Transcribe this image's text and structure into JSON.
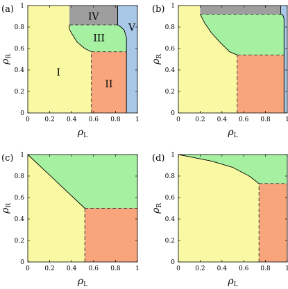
{
  "colors": {
    "I": "#f9f9a3",
    "II": "#f8a57c",
    "III": "#a6f0a2",
    "IV": "#9e9e9e",
    "V": "#a9c7e6",
    "boundary": "#000000",
    "dashed": "#333333"
  },
  "chart_data": [
    {
      "type": "area",
      "panel_label": "(a)",
      "xlabel_symbol": "ρ",
      "xlabel_sub": "L",
      "ylabel_symbol": "ρ",
      "ylabel_sub": "R",
      "xlim": [
        0,
        1
      ],
      "ylim": [
        0,
        1
      ],
      "xticks": [
        "0",
        "0.2",
        "0.4",
        "0.6",
        "0.8",
        "1"
      ],
      "yticks": [
        "0",
        "0.2",
        "0.4",
        "0.6",
        "0.8",
        "1"
      ],
      "regions": [
        {
          "id": "I",
          "label": "I",
          "label_at": [
            0.28,
            0.38
          ],
          "points": [
            [
              0,
              0
            ],
            [
              0.58,
              0
            ],
            [
              0.58,
              0.57
            ],
            [
              0.52,
              0.6
            ],
            [
              0.45,
              0.66
            ],
            [
              0.4,
              0.74
            ],
            [
              0.38,
              0.82
            ],
            [
              0.38,
              1
            ],
            [
              0,
              1
            ]
          ]
        },
        {
          "id": "II",
          "label": "II",
          "label_at": [
            0.74,
            0.27
          ],
          "points": [
            [
              0.58,
              0
            ],
            [
              0.9,
              0
            ],
            [
              0.9,
              0.57
            ],
            [
              0.58,
              0.57
            ]
          ]
        },
        {
          "id": "III",
          "label": "III",
          "label_at": [
            0.65,
            0.7
          ],
          "points": [
            [
              0.38,
              0.82
            ],
            [
              0.4,
              0.74
            ],
            [
              0.45,
              0.66
            ],
            [
              0.52,
              0.6
            ],
            [
              0.58,
              0.57
            ],
            [
              0.9,
              0.57
            ],
            [
              0.9,
              0.7
            ],
            [
              0.88,
              0.77
            ],
            [
              0.85,
              0.8
            ],
            [
              0.82,
              0.82
            ]
          ]
        },
        {
          "id": "IV",
          "label": "IV",
          "label_at": [
            0.6,
            0.9
          ],
          "points": [
            [
              0.38,
              0.82
            ],
            [
              0.82,
              0.82
            ],
            [
              0.82,
              1
            ],
            [
              0.38,
              1
            ]
          ]
        },
        {
          "id": "V",
          "label": "V",
          "label_at": [
            0.95,
            0.8
          ],
          "points": [
            [
              0.82,
              0.82
            ],
            [
              0.85,
              0.8
            ],
            [
              0.88,
              0.77
            ],
            [
              0.9,
              0.7
            ],
            [
              0.9,
              0
            ],
            [
              1,
              0
            ],
            [
              1,
              1
            ],
            [
              0.82,
              1
            ]
          ]
        }
      ],
      "solid_lines": [
        [
          [
            0.38,
            0.82
          ],
          [
            0.38,
            0.78
          ],
          [
            0.4,
            0.74
          ],
          [
            0.45,
            0.66
          ],
          [
            0.52,
            0.6
          ],
          [
            0.58,
            0.57
          ]
        ],
        [
          [
            0.82,
            1
          ],
          [
            0.82,
            0.82
          ],
          [
            0.85,
            0.8
          ],
          [
            0.88,
            0.77
          ],
          [
            0.9,
            0.7
          ],
          [
            0.9,
            0
          ]
        ]
      ],
      "dashed_lines": [
        [
          [
            0.38,
            0.82
          ],
          [
            0.82,
            0.82
          ]
        ],
        [
          [
            0.58,
            0.57
          ],
          [
            0.9,
            0.57
          ]
        ],
        [
          [
            0.58,
            0
          ],
          [
            0.58,
            0.57
          ]
        ]
      ]
    },
    {
      "type": "area",
      "panel_label": "(b)",
      "xlabel_symbol": "ρ",
      "xlabel_sub": "L",
      "ylabel_symbol": "ρ",
      "ylabel_sub": "R",
      "xlim": [
        0,
        1
      ],
      "ylim": [
        0,
        1
      ],
      "xticks": [
        "0",
        "0.2",
        "0.4",
        "0.6",
        "0.8",
        "1"
      ],
      "yticks": [
        "0",
        "0.2",
        "0.4",
        "0.6",
        "0.8",
        "1"
      ],
      "regions": [
        {
          "id": "I",
          "label": "",
          "points": [
            [
              0,
              0
            ],
            [
              0.54,
              0
            ],
            [
              0.54,
              0.54
            ],
            [
              0.47,
              0.57
            ],
            [
              0.38,
              0.66
            ],
            [
              0.3,
              0.75
            ],
            [
              0.24,
              0.84
            ],
            [
              0.2,
              0.92
            ],
            [
              0.2,
              1
            ],
            [
              0,
              1
            ]
          ]
        },
        {
          "id": "II",
          "label": "",
          "points": [
            [
              0.54,
              0
            ],
            [
              0.97,
              0
            ],
            [
              0.97,
              0.54
            ],
            [
              0.54,
              0.54
            ]
          ]
        },
        {
          "id": "III",
          "label": "",
          "points": [
            [
              0.2,
              0.92
            ],
            [
              0.24,
              0.84
            ],
            [
              0.3,
              0.75
            ],
            [
              0.38,
              0.66
            ],
            [
              0.47,
              0.57
            ],
            [
              0.54,
              0.54
            ],
            [
              0.97,
              0.54
            ],
            [
              0.97,
              0.88
            ],
            [
              0.96,
              0.91
            ],
            [
              0.94,
              0.92
            ]
          ]
        },
        {
          "id": "IV",
          "label": "",
          "points": [
            [
              0.2,
              0.92
            ],
            [
              0.94,
              0.92
            ],
            [
              0.94,
              1
            ],
            [
              0.2,
              1
            ]
          ]
        },
        {
          "id": "V",
          "label": "",
          "points": [
            [
              0.94,
              0.92
            ],
            [
              0.96,
              0.91
            ],
            [
              0.97,
              0.88
            ],
            [
              0.97,
              0
            ],
            [
              1,
              0
            ],
            [
              1,
              1
            ],
            [
              0.94,
              1
            ]
          ]
        }
      ],
      "solid_lines": [
        [
          [
            0.2,
            0.92
          ],
          [
            0.24,
            0.84
          ],
          [
            0.3,
            0.75
          ],
          [
            0.38,
            0.66
          ],
          [
            0.47,
            0.57
          ],
          [
            0.54,
            0.54
          ]
        ],
        [
          [
            0.94,
            1
          ],
          [
            0.94,
            0.92
          ],
          [
            0.96,
            0.91
          ],
          [
            0.97,
            0.88
          ],
          [
            0.97,
            0
          ]
        ]
      ],
      "dashed_lines": [
        [
          [
            0.2,
            0.92
          ],
          [
            0.94,
            0.92
          ]
        ],
        [
          [
            0.54,
            0.54
          ],
          [
            0.97,
            0.54
          ]
        ],
        [
          [
            0.54,
            0
          ],
          [
            0.54,
            0.54
          ]
        ]
      ]
    },
    {
      "type": "area",
      "panel_label": "(c)",
      "xlabel_symbol": "ρ",
      "xlabel_sub": "L",
      "ylabel_symbol": "ρ",
      "ylabel_sub": "R",
      "xlim": [
        0,
        1
      ],
      "ylim": [
        0,
        1
      ],
      "xticks": [
        "0",
        "0.2",
        "0.4",
        "0.6",
        "0.8",
        "1"
      ],
      "yticks": [
        "0",
        "0.2",
        "0.4",
        "0.6",
        "0.8",
        "1"
      ],
      "regions": [
        {
          "id": "I",
          "label": "",
          "points": [
            [
              0,
              0
            ],
            [
              0.52,
              0
            ],
            [
              0.52,
              0.5
            ],
            [
              0,
              1
            ]
          ]
        },
        {
          "id": "II",
          "label": "",
          "points": [
            [
              0.52,
              0
            ],
            [
              1,
              0
            ],
            [
              1,
              0.5
            ],
            [
              0.52,
              0.5
            ]
          ]
        },
        {
          "id": "III",
          "label": "",
          "points": [
            [
              0,
              1
            ],
            [
              0.52,
              0.5
            ],
            [
              1,
              0.5
            ],
            [
              1,
              1
            ]
          ]
        }
      ],
      "solid_lines": [
        [
          [
            0,
            1
          ],
          [
            0.52,
            0.5
          ]
        ]
      ],
      "dashed_lines": [
        [
          [
            0.52,
            0.5
          ],
          [
            1,
            0.5
          ]
        ],
        [
          [
            0.52,
            0
          ],
          [
            0.52,
            0.5
          ]
        ]
      ]
    },
    {
      "type": "area",
      "panel_label": "(d)",
      "xlabel_symbol": "ρ",
      "xlabel_sub": "L",
      "ylabel_symbol": "ρ",
      "ylabel_sub": "R",
      "xlim": [
        0,
        1
      ],
      "ylim": [
        0,
        1
      ],
      "xticks": [
        "0",
        "0.2",
        "0.4",
        "0.6",
        "0.8",
        "1"
      ],
      "yticks": [
        "0",
        "0.2",
        "0.4",
        "0.6",
        "0.8",
        "1"
      ],
      "regions": [
        {
          "id": "I",
          "label": "",
          "points": [
            [
              0,
              0
            ],
            [
              0.74,
              0
            ],
            [
              0.74,
              0.73
            ],
            [
              0.65,
              0.8
            ],
            [
              0.5,
              0.88
            ],
            [
              0.3,
              0.94
            ],
            [
              0.1,
              0.98
            ],
            [
              0,
              1
            ]
          ]
        },
        {
          "id": "II",
          "label": "",
          "points": [
            [
              0.74,
              0
            ],
            [
              1,
              0
            ],
            [
              1,
              0.73
            ],
            [
              0.74,
              0.73
            ]
          ]
        },
        {
          "id": "III",
          "label": "",
          "points": [
            [
              0,
              1
            ],
            [
              0.1,
              0.98
            ],
            [
              0.3,
              0.94
            ],
            [
              0.5,
              0.88
            ],
            [
              0.65,
              0.8
            ],
            [
              0.74,
              0.73
            ],
            [
              1,
              0.73
            ],
            [
              1,
              1
            ]
          ]
        }
      ],
      "solid_lines": [
        [
          [
            0,
            1
          ],
          [
            0.1,
            0.98
          ],
          [
            0.3,
            0.94
          ],
          [
            0.5,
            0.88
          ],
          [
            0.65,
            0.8
          ],
          [
            0.74,
            0.73
          ]
        ]
      ],
      "dashed_lines": [
        [
          [
            0.74,
            0.73
          ],
          [
            1,
            0.73
          ]
        ],
        [
          [
            0.74,
            0
          ],
          [
            0.74,
            0.73
          ]
        ]
      ]
    }
  ]
}
